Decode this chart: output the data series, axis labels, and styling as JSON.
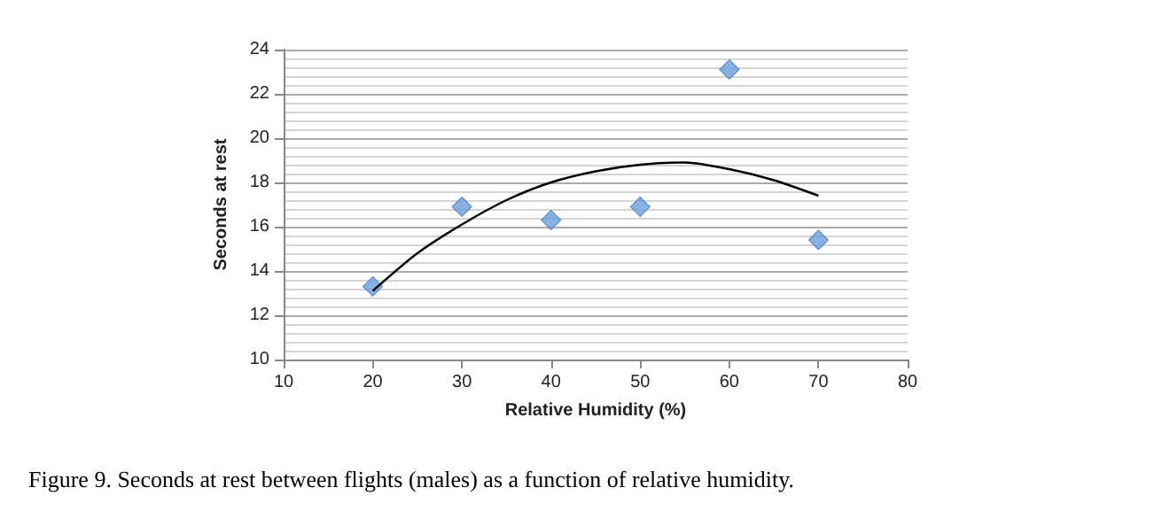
{
  "chart_data": {
    "type": "scatter",
    "xlabel": "Relative Humidity (%)",
    "ylabel": "Seconds at rest",
    "xlim": [
      10,
      80
    ],
    "xticks": [
      10,
      20,
      30,
      40,
      50,
      60,
      70,
      80
    ],
    "ylim": [
      10,
      24
    ],
    "yticks": [
      10,
      12,
      14,
      16,
      18,
      20,
      22,
      24
    ],
    "grid": "y",
    "marker": "diamond",
    "annotations": [
      "Figure 9. Seconds at rest between flights (males) as a function of relative humidity."
    ],
    "series": [
      {
        "color": "#6a9fdc",
        "x": [
          20,
          30,
          40,
          50,
          60,
          70
        ],
        "values": [
          13.3,
          16.9,
          16.3,
          16.9,
          23.1,
          15.4
        ]
      },
      {
        "type": "line",
        "color": "#000000",
        "marker": "none",
        "line_style": "solid",
        "x": [
          20,
          25,
          30,
          35,
          40,
          45,
          50,
          55,
          60,
          65,
          70
        ],
        "values": [
          13.1,
          14.8,
          16.1,
          17.2,
          18.0,
          18.5,
          18.8,
          18.9,
          18.6,
          18.1,
          17.4
        ]
      }
    ]
  }
}
